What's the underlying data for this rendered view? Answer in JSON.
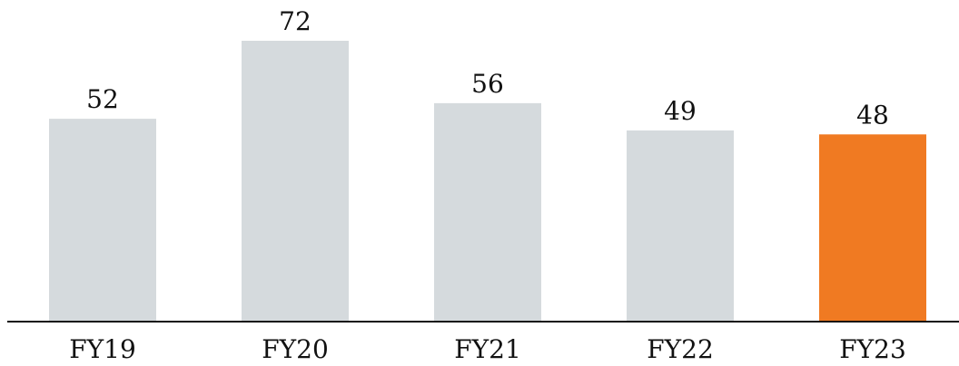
{
  "chart_data": {
    "type": "bar",
    "title": "",
    "xlabel": "",
    "ylabel": "",
    "categories": [
      "FY19",
      "FY20",
      "FY21",
      "FY22",
      "FY23"
    ],
    "values": [
      52,
      72,
      56,
      49,
      48
    ],
    "data_labels": [
      "52",
      "72",
      "56",
      "49",
      "48"
    ],
    "ylim": [
      0,
      80
    ],
    "grid": false,
    "legend": "none",
    "colors": {
      "bar_default": "#d5dadd",
      "bar_highlight": "#f07a22",
      "highlight_category": "FY23",
      "axis": "#111111",
      "text": "#111111"
    }
  }
}
